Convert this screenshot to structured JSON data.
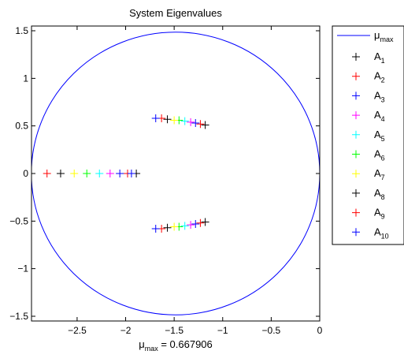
{
  "chart_data": {
    "type": "scatter",
    "title": "System Eigenvalues",
    "xlabel": {
      "symbol": "μ",
      "sub": "max",
      "suffix": " = 0.667906"
    },
    "ylabel": "",
    "xlim": [
      -2.97,
      0
    ],
    "ylim": [
      -1.55,
      1.55
    ],
    "xticks": [
      -2.5,
      -2,
      -1.5,
      -1,
      -0.5,
      0
    ],
    "xtick_labels": [
      "−2.5",
      "−2",
      "−1.5",
      "−1",
      "−0.5",
      "0"
    ],
    "yticks": [
      -1.5,
      -1,
      -0.5,
      0,
      0.5,
      1,
      1.5
    ],
    "ytick_labels": [
      "−1.5",
      "−1",
      "−0.5",
      "0",
      "0.5",
      "1",
      "1.5"
    ],
    "grid": false,
    "legend_position": "outside-right",
    "circle": {
      "name_symbol": "μ",
      "name_sub": "max",
      "center": [
        -1.4856,
        0
      ],
      "radius": 1.4856,
      "color": "#0000ff"
    },
    "series": [
      {
        "name_base": "A",
        "name_sub": "1",
        "color": "#000000",
        "points": [
          [
            -1.18,
            0.51
          ],
          [
            -1.18,
            -0.51
          ],
          [
            -1.89,
            0
          ]
        ]
      },
      {
        "name_base": "A",
        "name_sub": "2",
        "color": "#ff0000",
        "points": [
          [
            -1.23,
            0.52
          ],
          [
            -1.23,
            -0.52
          ],
          [
            -1.98,
            0
          ]
        ]
      },
      {
        "name_base": "A",
        "name_sub": "3",
        "color": "#0000ff",
        "points": [
          [
            -1.28,
            0.53
          ],
          [
            -1.28,
            -0.53
          ],
          [
            -2.06,
            0
          ]
        ]
      },
      {
        "name_base": "A",
        "name_sub": "4",
        "color": "#ff00ff",
        "points": [
          [
            -1.33,
            0.54
          ],
          [
            -1.33,
            -0.54
          ],
          [
            -2.16,
            0
          ]
        ]
      },
      {
        "name_base": "A",
        "name_sub": "5",
        "color": "#00ffff",
        "points": [
          [
            -1.39,
            0.55
          ],
          [
            -1.39,
            -0.55
          ],
          [
            -2.27,
            0
          ]
        ]
      },
      {
        "name_base": "A",
        "name_sub": "6",
        "color": "#00ff00",
        "points": [
          [
            -1.45,
            0.56
          ],
          [
            -1.45,
            -0.56
          ],
          [
            -2.4,
            0
          ]
        ]
      },
      {
        "name_base": "A",
        "name_sub": "7",
        "color": "#ffff00",
        "points": [
          [
            -1.5,
            0.56
          ],
          [
            -1.5,
            -0.56
          ],
          [
            -2.53,
            0
          ]
        ]
      },
      {
        "name_base": "A",
        "name_sub": "8",
        "color": "#000000",
        "points": [
          [
            -1.57,
            0.57
          ],
          [
            -1.57,
            -0.57
          ],
          [
            -2.67,
            0
          ]
        ]
      },
      {
        "name_base": "A",
        "name_sub": "9",
        "color": "#ff0000",
        "points": [
          [
            -1.63,
            0.58
          ],
          [
            -1.63,
            -0.58
          ],
          [
            -2.81,
            0
          ]
        ]
      },
      {
        "name_base": "A",
        "name_sub": "10",
        "color": "#0000ff",
        "points": [
          [
            -1.69,
            0.58
          ],
          [
            -1.69,
            -0.58
          ],
          [
            -1.94,
            0
          ]
        ]
      }
    ]
  }
}
